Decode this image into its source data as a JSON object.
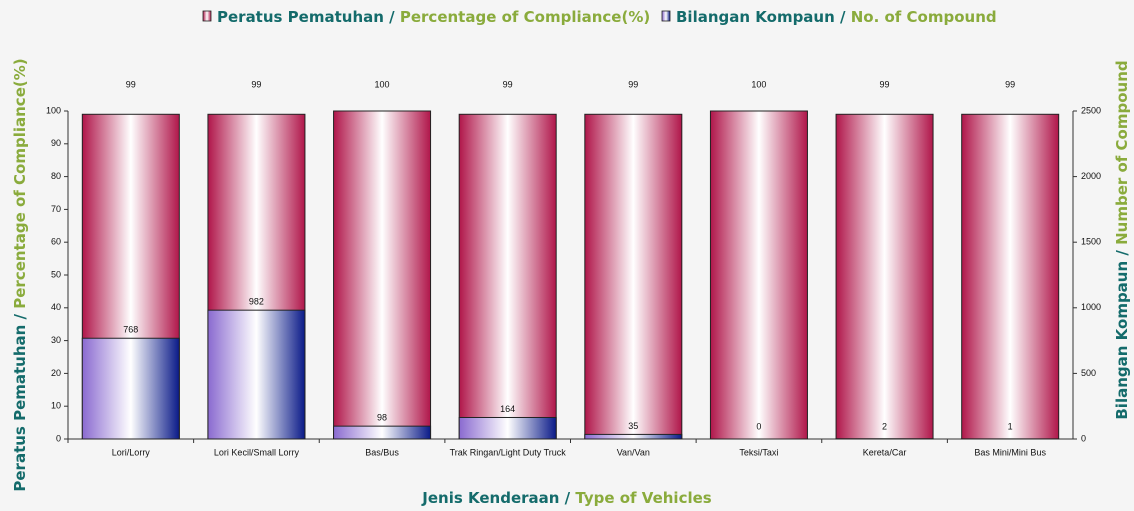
{
  "chart_data": {
    "type": "bar",
    "categories": [
      "Lori/Lorry",
      "Lori Kecil/Small Lorry",
      "Bas/Bus",
      "Trak Ringan/Light Duty Truck",
      "Van/Van",
      "Teksi/Taxi",
      "Kereta/Car",
      "Bas Mini/Mini Bus"
    ],
    "series": [
      {
        "name": "Peratus Pematuhan / Percentage of Compliance(%)",
        "color": "#b0164a",
        "values": [
          99,
          99,
          100,
          99,
          99,
          100,
          99,
          99
        ]
      },
      {
        "name": "Bilangan Kompaun / No. of Compound",
        "color": "#8a6ad0",
        "color2": "#0a1a88",
        "axis": "y2",
        "values": [
          768,
          982,
          98,
          164,
          35,
          0,
          2,
          1
        ]
      }
    ],
    "xlabel": "Jenis Kenderaan / Type of Vehicles",
    "ylabel": "Peratus Pematuhan / Percentage of Compliance(%)",
    "y2label": "Bilangan Kompaun / Number of Compound",
    "ylim": [
      0,
      100
    ],
    "yticks": [
      0,
      10,
      20,
      30,
      40,
      50,
      60,
      70,
      80,
      90,
      100
    ],
    "y2lim": [
      0,
      2500
    ],
    "y2ticks": [
      0,
      500,
      1000,
      1500,
      2000,
      2500
    ],
    "legend": "top"
  }
}
